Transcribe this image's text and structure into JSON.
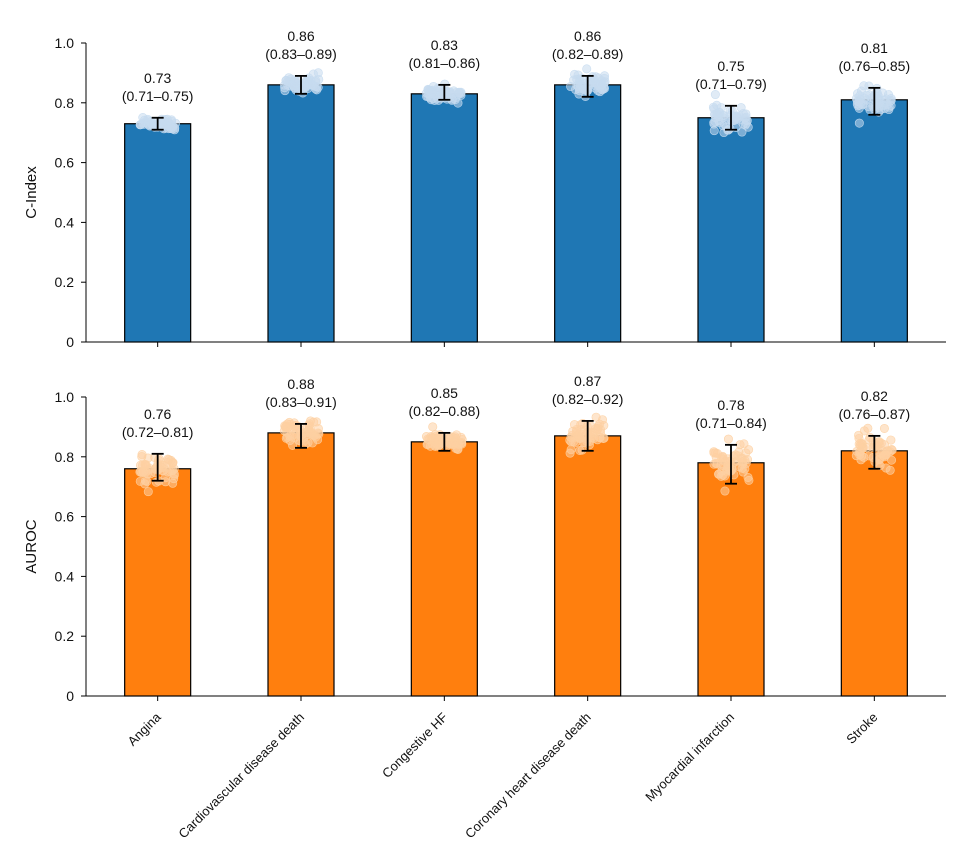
{
  "chart_data": [
    {
      "type": "bar",
      "ylabel": "C-Index",
      "ylim": [
        0,
        1.0
      ],
      "yticks": [
        "0",
        "0.2",
        "0.4",
        "0.6",
        "0.8",
        "1.0"
      ],
      "bar_color": "#1f77b4",
      "point_color": "#c6dbef",
      "categories": [
        "Angina",
        "Cardiovascular disease death",
        "Congestive HF",
        "Coronary heart disease death",
        "Myocardial infarction",
        "Stroke"
      ],
      "values": [
        0.73,
        0.86,
        0.83,
        0.86,
        0.75,
        0.81
      ],
      "ci_low": [
        0.71,
        0.83,
        0.81,
        0.82,
        0.71,
        0.76
      ],
      "ci_high": [
        0.75,
        0.89,
        0.86,
        0.89,
        0.79,
        0.85
      ],
      "value_labels": [
        "0.73",
        "0.86",
        "0.83",
        "0.86",
        "0.75",
        "0.81"
      ],
      "ci_labels": [
        "(0.71–0.75)",
        "(0.83–0.89)",
        "(0.81–0.86)",
        "(0.82–0.89)",
        "(0.71–0.79)",
        "(0.76–0.85)"
      ]
    },
    {
      "type": "bar",
      "ylabel": "AUROC",
      "ylim": [
        0,
        1.0
      ],
      "yticks": [
        "0",
        "0.2",
        "0.4",
        "0.6",
        "0.8",
        "1.0"
      ],
      "bar_color": "#ff7f0e",
      "point_color": "#fdd0a2",
      "categories": [
        "Angina",
        "Cardiovascular disease death",
        "Congestive HF",
        "Coronary heart disease death",
        "Myocardial infarction",
        "Stroke"
      ],
      "values": [
        0.76,
        0.88,
        0.85,
        0.87,
        0.78,
        0.82
      ],
      "ci_low": [
        0.72,
        0.83,
        0.82,
        0.82,
        0.71,
        0.76
      ],
      "ci_high": [
        0.81,
        0.91,
        0.88,
        0.92,
        0.84,
        0.87
      ],
      "value_labels": [
        "0.76",
        "0.88",
        "0.85",
        "0.87",
        "0.78",
        "0.82"
      ],
      "ci_labels": [
        "(0.72–0.81)",
        "(0.83–0.91)",
        "(0.82–0.88)",
        "(0.82–0.92)",
        "(0.71–0.84)",
        "(0.76–0.87)"
      ]
    }
  ]
}
